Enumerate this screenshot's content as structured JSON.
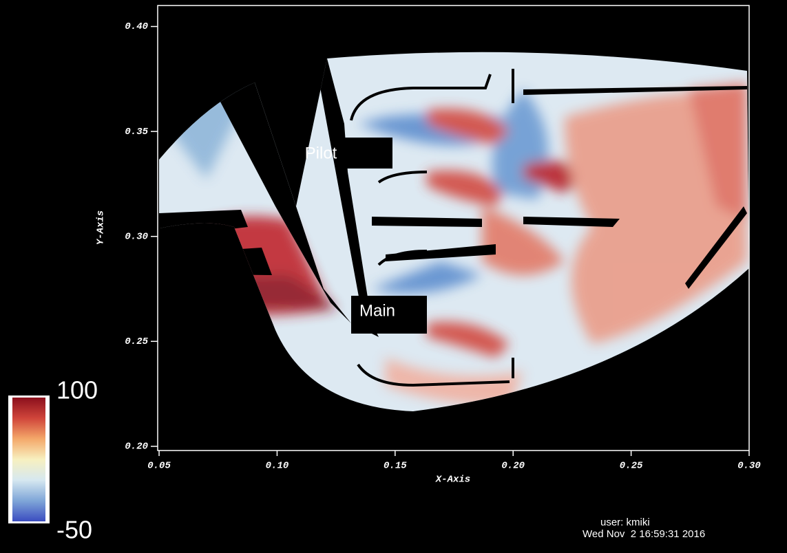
{
  "chart_data": {
    "type": "field",
    "xlabel": "X-Axis",
    "ylabel": "Y-Axis",
    "xlim": [
      0.0494,
      0.3
    ],
    "ylim": [
      0.198,
      0.41
    ],
    "xticks": [
      0.05,
      {
        "value": 0.1,
        "label": "0.10"
      },
      0.15,
      {
        "value": 0.2,
        "label": "0.20"
      },
      0.25,
      {
        "value": 0.3,
        "label": "0.30"
      }
    ],
    "yticks": [
      {
        "value": 0.2,
        "label": "0.20"
      },
      0.25,
      {
        "value": 0.3,
        "label": "0.30"
      },
      0.35,
      {
        "value": 0.4,
        "label": "0.40"
      }
    ],
    "colorbar": {
      "min": -50,
      "max": 100,
      "colors": [
        "#3b4cc0",
        "#7fa6d8",
        "#d6e8f0",
        "#f7f0c0",
        "#f4a86a",
        "#d0453a",
        "#8b0f1c"
      ]
    },
    "annotations": [
      "Pilot",
      "Main"
    ],
    "footer": [
      "user: kmiki",
      "Wed Nov  2 16:59:31 2016"
    ]
  }
}
